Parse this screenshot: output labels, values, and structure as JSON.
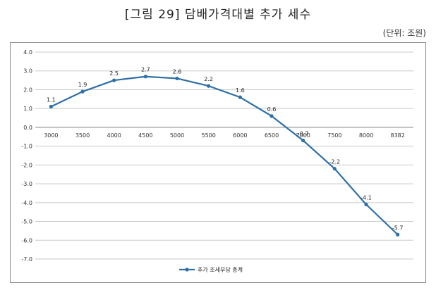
{
  "header": {
    "title": "[그림 29] 담배가격대별 추가 세수",
    "unit": "(단위: 조원)"
  },
  "chart_data": {
    "type": "line",
    "title": "[그림 29] 담배가격대별 추가 세수",
    "unit": "(단위: 조원)",
    "categories": [
      "3000",
      "3500",
      "4000",
      "4500",
      "5000",
      "5500",
      "6000",
      "6500",
      "7000",
      "7500",
      "8000",
      "8382"
    ],
    "series": [
      {
        "name": "추가 조세부담 총계",
        "values": [
          1.1,
          1.9,
          2.5,
          2.7,
          2.6,
          2.2,
          1.6,
          0.6,
          -0.7,
          -2.2,
          -4.1,
          -5.7
        ],
        "labels": [
          "1.1",
          "1.9",
          "2.5",
          "2.7",
          "2.6",
          "2.2",
          "1.6",
          "0.6",
          "-0.7",
          "-2.2",
          "-4.1",
          "-5.7"
        ],
        "color": "#2e6fa7"
      }
    ],
    "y_ticks": [
      "4.0",
      "3.0",
      "2.0",
      "1.0",
      "0.0",
      "-1.0",
      "-2.0",
      "-3.0",
      "-4.0",
      "-5.0",
      "-6.0",
      "-7.0"
    ],
    "ylim": [
      -7,
      4
    ],
    "grid": true,
    "legend_position": "bottom"
  }
}
